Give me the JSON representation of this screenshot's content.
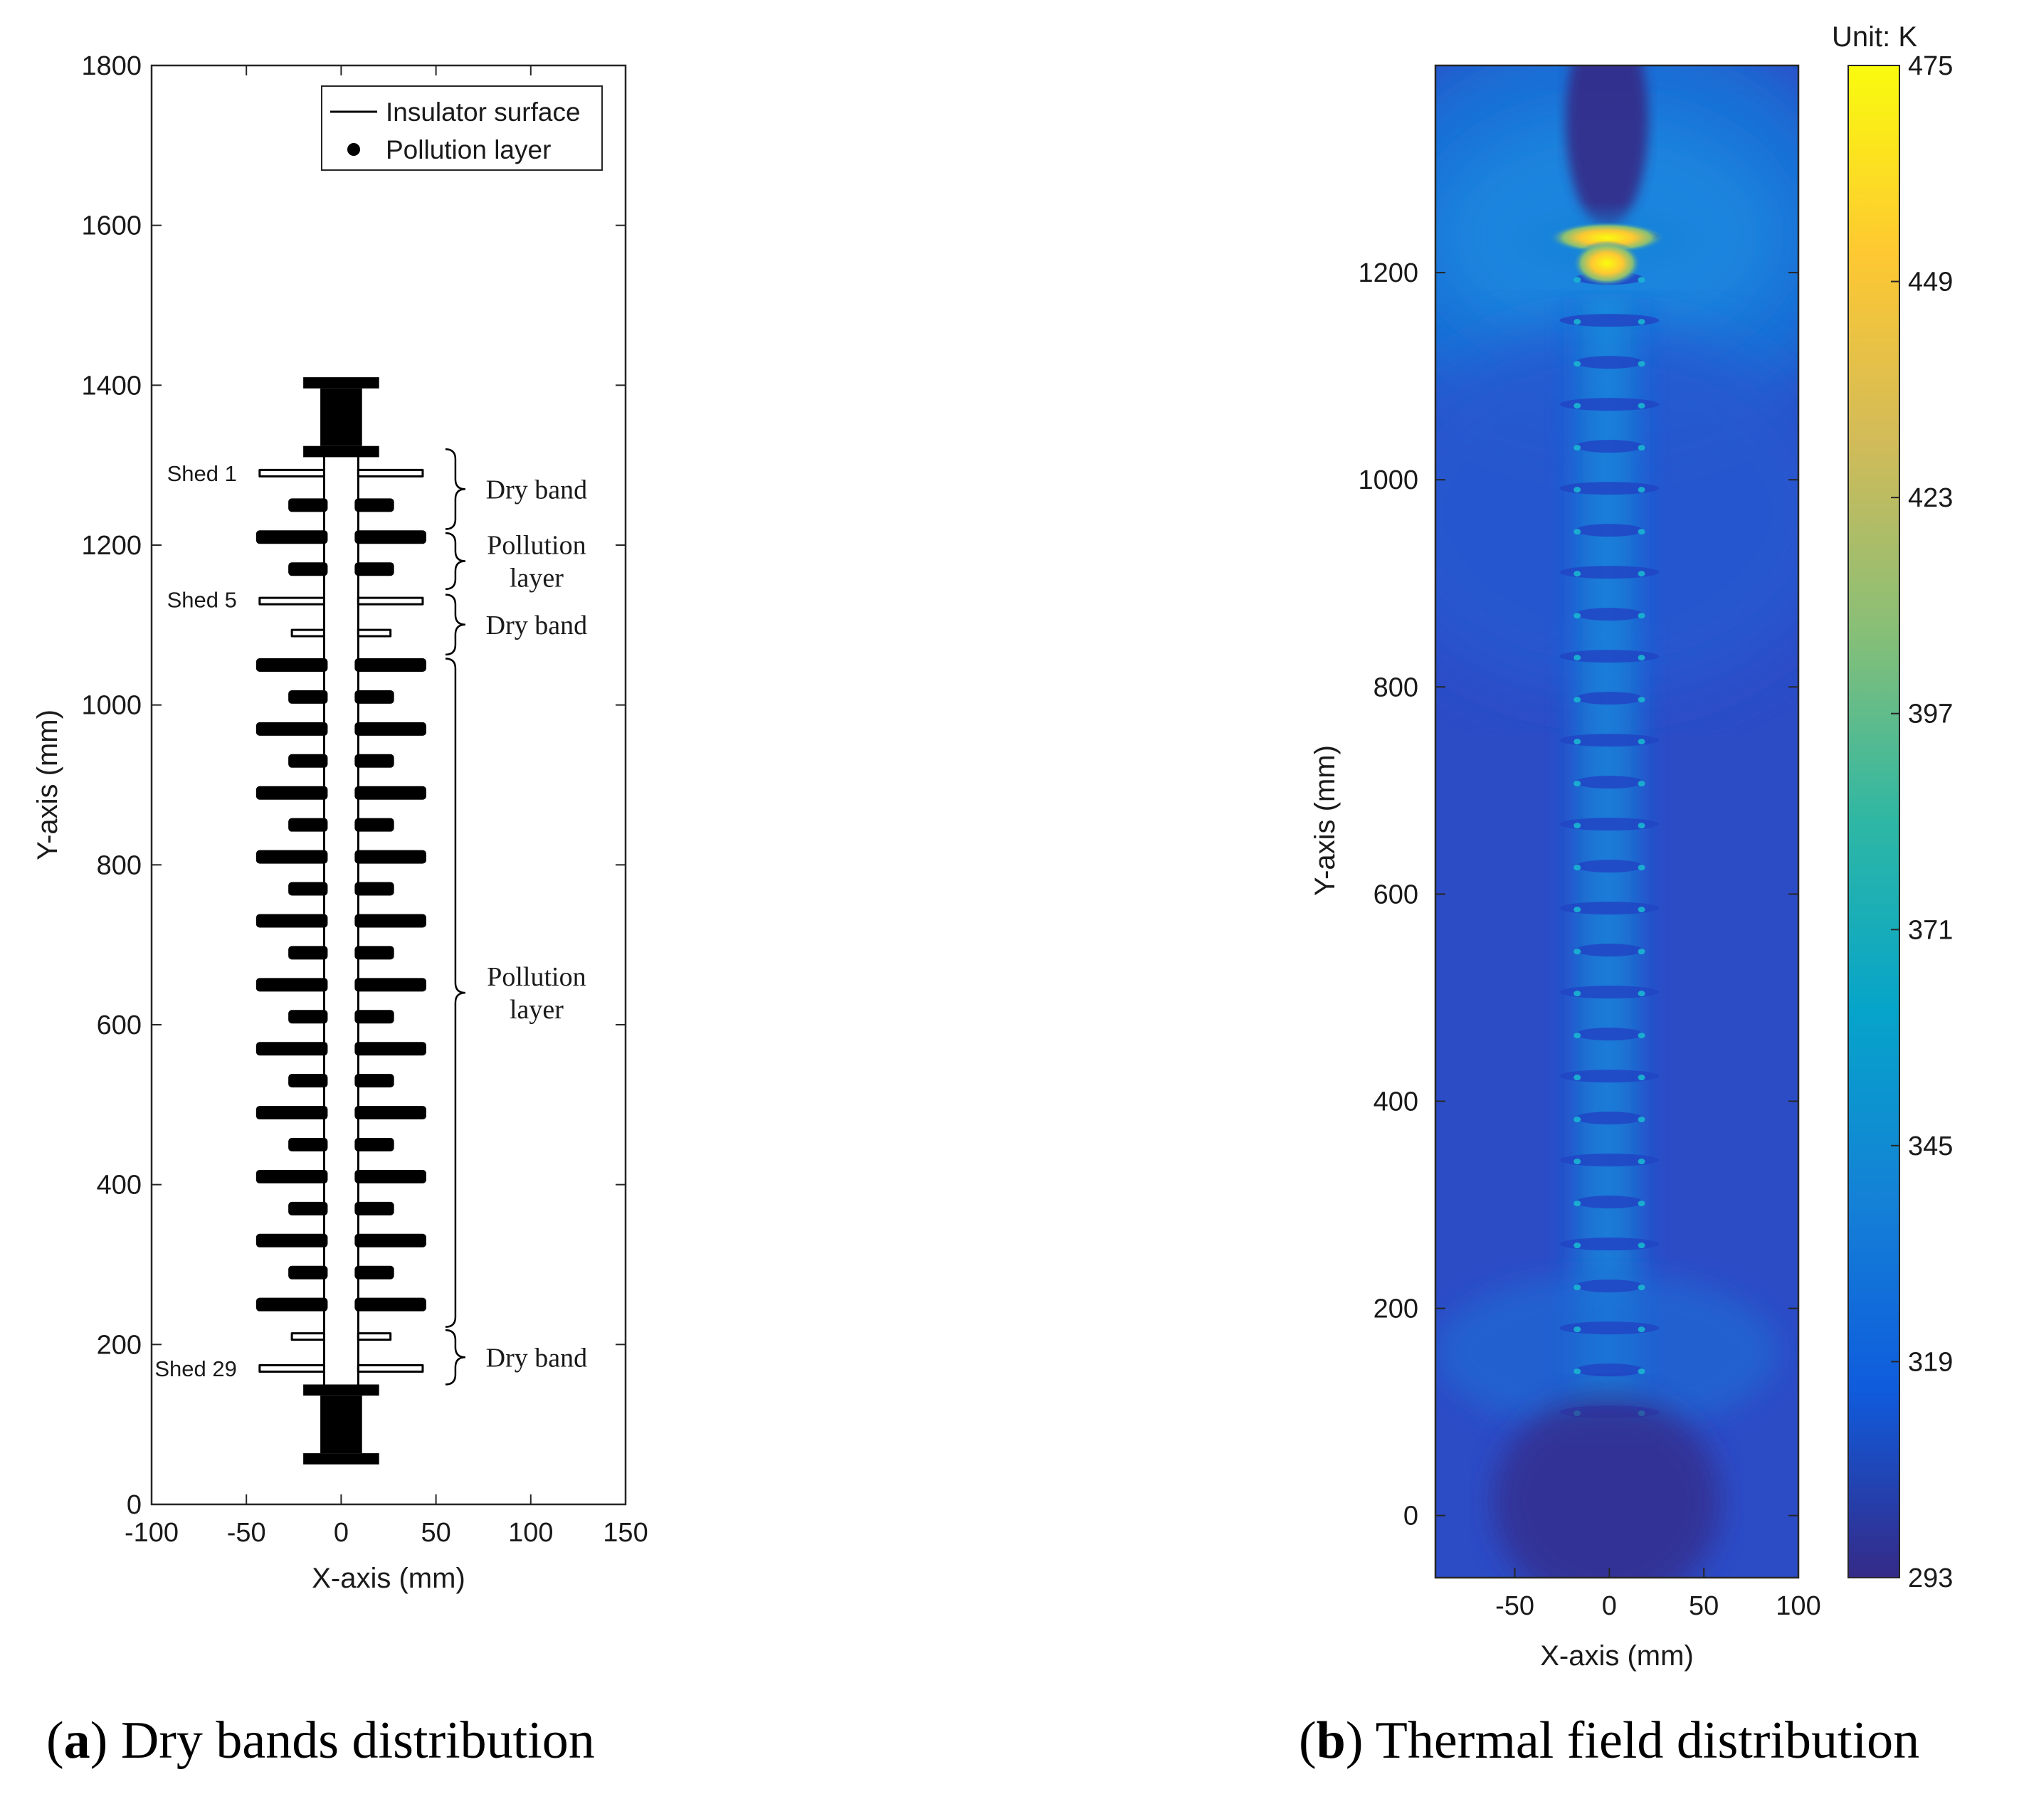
{
  "chart_data": [
    {
      "type": "scatter",
      "panel_caption": {
        "letter": "a",
        "text": "Dry bands distribution"
      },
      "xlabel": "X-axis (mm)",
      "ylabel": "Y-axis (mm)",
      "xlim": [
        -100,
        150
      ],
      "ylim": [
        0,
        1800
      ],
      "xticks": [
        -100,
        -50,
        0,
        50,
        100,
        150
      ],
      "yticks": [
        0,
        200,
        400,
        600,
        800,
        1000,
        1200,
        1400,
        1600,
        1800
      ],
      "grid": false,
      "legend": {
        "position": "top-right",
        "entries": [
          {
            "label": "Insulator surface",
            "marker": "line"
          },
          {
            "label": "Pollution layer",
            "marker": "dot"
          }
        ]
      },
      "insulator": {
        "shed_count": 29,
        "sheds_y_start": 1290,
        "sheds_y_end": 170,
        "large_shed_half_width": 43,
        "small_shed_half_width": 26,
        "core_half_width": 9,
        "fitting_top": {
          "y_bottom": 1310,
          "y_top": 1410
        },
        "fitting_bottom": {
          "y_bottom": 50,
          "y_top": 150
        },
        "fitting_flange_half_width": 20,
        "fitting_neck_half_width": 11,
        "polluted_shed_ranges": [
          [
            2,
            4
          ],
          [
            7,
            27
          ]
        ]
      },
      "annotations": [
        {
          "text": "Shed 1",
          "x": -55,
          "y": 1290
        },
        {
          "text": "Shed 5",
          "x": -55,
          "y": 1132
        },
        {
          "text": "Shed 29",
          "x": -55,
          "y": 170
        }
      ],
      "braces": [
        {
          "y_top": 1320,
          "y_bottom": 1220,
          "label": [
            "Dry band"
          ]
        },
        {
          "y_top": 1215,
          "y_bottom": 1145,
          "label": [
            "Pollution",
            "layer"
          ]
        },
        {
          "y_top": 1138,
          "y_bottom": 1063,
          "label": [
            "Dry band"
          ]
        },
        {
          "y_top": 1058,
          "y_bottom": 222,
          "label": [
            "Pollution",
            "layer"
          ]
        },
        {
          "y_top": 218,
          "y_bottom": 150,
          "label": [
            "Dry band"
          ]
        }
      ]
    },
    {
      "type": "heatmap",
      "panel_caption": {
        "letter": "b",
        "text": "Thermal field distribution"
      },
      "xlabel": "X-axis (mm)",
      "ylabel": "Y-axis (mm)",
      "xlim": [
        -92,
        100
      ],
      "ylim": [
        -60,
        1400
      ],
      "xticks": [
        -50,
        0,
        50,
        100
      ],
      "yticks": [
        0,
        200,
        400,
        600,
        800,
        1000,
        1200
      ],
      "colorbar": {
        "title": "Unit: K",
        "min": 293,
        "max": 475,
        "ticks": [
          293,
          319,
          345,
          371,
          397,
          423,
          449,
          475
        ],
        "colormap": "parula"
      },
      "background_temperature_K": 305,
      "features": [
        {
          "name": "top fitting cold zone",
          "y_range": [
            1255,
            1400
          ],
          "temperature_K": 295
        },
        {
          "name": "hot spot",
          "y": 1230,
          "x_half_width": 22,
          "temperature_K": 465
        },
        {
          "name": "hot spot lower lobe",
          "y": 1205,
          "x_half_width": 13,
          "temperature_K": 472
        },
        {
          "name": "bottom fitting cold zone",
          "y_range": [
            -60,
            100
          ],
          "temperature_K": 295
        }
      ]
    }
  ]
}
